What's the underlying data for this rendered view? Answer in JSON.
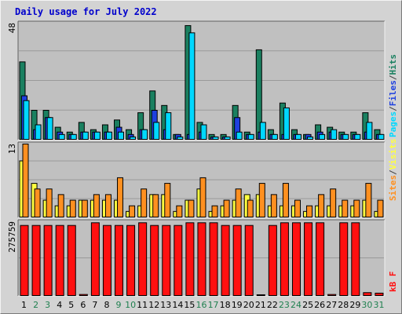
{
  "title": "Daily usage for July 2022",
  "colors": {
    "background": "#d3d3d3",
    "plot_bg": "#c0c0c0",
    "grid": "#9a9a9a",
    "hits": "#1a8060",
    "files": "#1e40e0",
    "pages": "#00d8ff",
    "visits": "#ffff40",
    "sites": "#ff9020",
    "kbytes": "#ff1010",
    "weekday_label": "#000000",
    "weekend_label": "#208050"
  },
  "chart_data": [
    {
      "type": "bar",
      "panel": "top",
      "ymax_label": "48",
      "ylim": [
        0,
        48
      ],
      "axis_title_parts": [
        "Pages",
        "/",
        "Files",
        "/",
        "Hits"
      ],
      "categories": [
        "1",
        "2",
        "3",
        "4",
        "5",
        "6",
        "7",
        "8",
        "9",
        "10",
        "11",
        "12",
        "13",
        "14",
        "15",
        "16",
        "17",
        "18",
        "19",
        "20",
        "21",
        "22",
        "23",
        "24",
        "25",
        "26",
        "27",
        "28",
        "29",
        "30",
        "31"
      ],
      "series": [
        {
          "name": "Hits",
          "values": [
            32,
            12,
            12,
            5,
            3,
            7,
            4,
            6,
            8,
            4,
            11,
            20,
            14,
            2,
            47,
            7,
            2,
            2,
            14,
            3,
            37,
            4,
            15,
            4,
            2,
            6,
            5,
            3,
            3,
            11,
            4
          ]
        },
        {
          "name": "Files",
          "values": [
            18,
            4,
            9,
            3,
            2,
            3,
            3,
            3,
            5,
            2,
            4,
            12,
            4,
            2,
            2,
            3,
            1,
            1,
            9,
            2,
            3,
            2,
            2,
            2,
            2,
            3,
            3,
            2,
            2,
            3,
            2
          ]
        },
        {
          "name": "Pages",
          "values": [
            16,
            6,
            9,
            2,
            2,
            3,
            3,
            3,
            3,
            1,
            4,
            7,
            11,
            1,
            44,
            6,
            1,
            1,
            3,
            2,
            7,
            2,
            13,
            2,
            1,
            2,
            4,
            2,
            2,
            7,
            2
          ]
        }
      ],
      "weekend_days": [
        "2",
        "3",
        "9",
        "10",
        "16",
        "17",
        "23",
        "24",
        "30",
        "31"
      ]
    },
    {
      "type": "bar",
      "panel": "middle",
      "ymax_label": "13",
      "ylim": [
        0,
        13
      ],
      "axis_title_parts": [
        "Sites",
        "/",
        "Visits"
      ],
      "categories": [
        "1",
        "2",
        "3",
        "4",
        "5",
        "6",
        "7",
        "8",
        "9",
        "10",
        "11",
        "12",
        "13",
        "14",
        "15",
        "16",
        "17",
        "18",
        "19",
        "20",
        "21",
        "22",
        "23",
        "24",
        "25",
        "26",
        "27",
        "28",
        "29",
        "30",
        "31"
      ],
      "series": [
        {
          "name": "Visits",
          "values": [
            10,
            6,
            3,
            2,
            2,
            3,
            3,
            3,
            3,
            1,
            2,
            4,
            4,
            1,
            3,
            5,
            1,
            2,
            3,
            4,
            4,
            2,
            2,
            2,
            1,
            2,
            2,
            2,
            2,
            3,
            1
          ]
        },
        {
          "name": "Sites",
          "values": [
            13,
            5,
            5,
            4,
            3,
            3,
            4,
            4,
            7,
            2,
            5,
            4,
            6,
            2,
            3,
            7,
            2,
            3,
            5,
            3,
            6,
            4,
            6,
            3,
            2,
            4,
            5,
            3,
            3,
            6,
            3
          ]
        }
      ]
    },
    {
      "type": "bar",
      "panel": "bottom",
      "ymax_label": "275759",
      "ylim": [
        0,
        275759
      ],
      "axis_title_parts": [
        "kB",
        "F"
      ],
      "categories": [
        "1",
        "2",
        "3",
        "4",
        "5",
        "6",
        "7",
        "8",
        "9",
        "10",
        "11",
        "12",
        "13",
        "14",
        "15",
        "16",
        "17",
        "18",
        "19",
        "20",
        "21",
        "22",
        "23",
        "24",
        "25",
        "26",
        "27",
        "28",
        "29",
        "30",
        "31"
      ],
      "series": [
        {
          "name": "kB F",
          "values": [
            262000,
            262000,
            262000,
            262000,
            262000,
            4000,
            272000,
            262000,
            262000,
            262000,
            272000,
            262000,
            262000,
            262000,
            272000,
            272000,
            272000,
            262000,
            262000,
            262000,
            3000,
            262000,
            272000,
            272000,
            272000,
            272000,
            4000,
            272000,
            272000,
            11000,
            9000
          ]
        }
      ]
    }
  ]
}
